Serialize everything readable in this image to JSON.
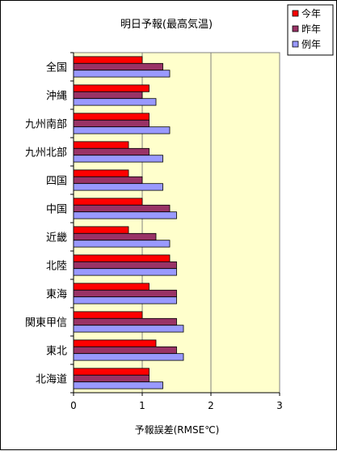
{
  "chart_data": {
    "type": "bar",
    "orientation": "horizontal",
    "title": "明日予報(最高気温)",
    "xlabel": "予報誤差(RMSE℃)",
    "ylabel": "",
    "xlim": [
      0,
      3
    ],
    "xticks": [
      "0",
      "1",
      "2",
      "3"
    ],
    "categories": [
      "全国",
      "沖縄",
      "九州南部",
      "九州北部",
      "四国",
      "中国",
      "近畿",
      "北陸",
      "東海",
      "関東甲信",
      "東北",
      "北海道"
    ],
    "series": [
      {
        "name": "今年",
        "color": "#ff0000",
        "values": [
          1.0,
          1.1,
          1.1,
          0.8,
          0.8,
          1.0,
          0.8,
          1.4,
          1.1,
          1.0,
          1.2,
          1.1
        ]
      },
      {
        "name": "昨年",
        "color": "#993366",
        "values": [
          1.3,
          1.0,
          1.1,
          1.1,
          1.0,
          1.4,
          1.2,
          1.5,
          1.5,
          1.5,
          1.5,
          1.1
        ]
      },
      {
        "name": "例年",
        "color": "#9999ff",
        "values": [
          1.4,
          1.2,
          1.4,
          1.3,
          1.3,
          1.5,
          1.4,
          1.5,
          1.5,
          1.6,
          1.6,
          1.3
        ]
      }
    ],
    "plot_background": "#ffffcc",
    "grid": "vertical-major",
    "legend_position": "top-right"
  }
}
